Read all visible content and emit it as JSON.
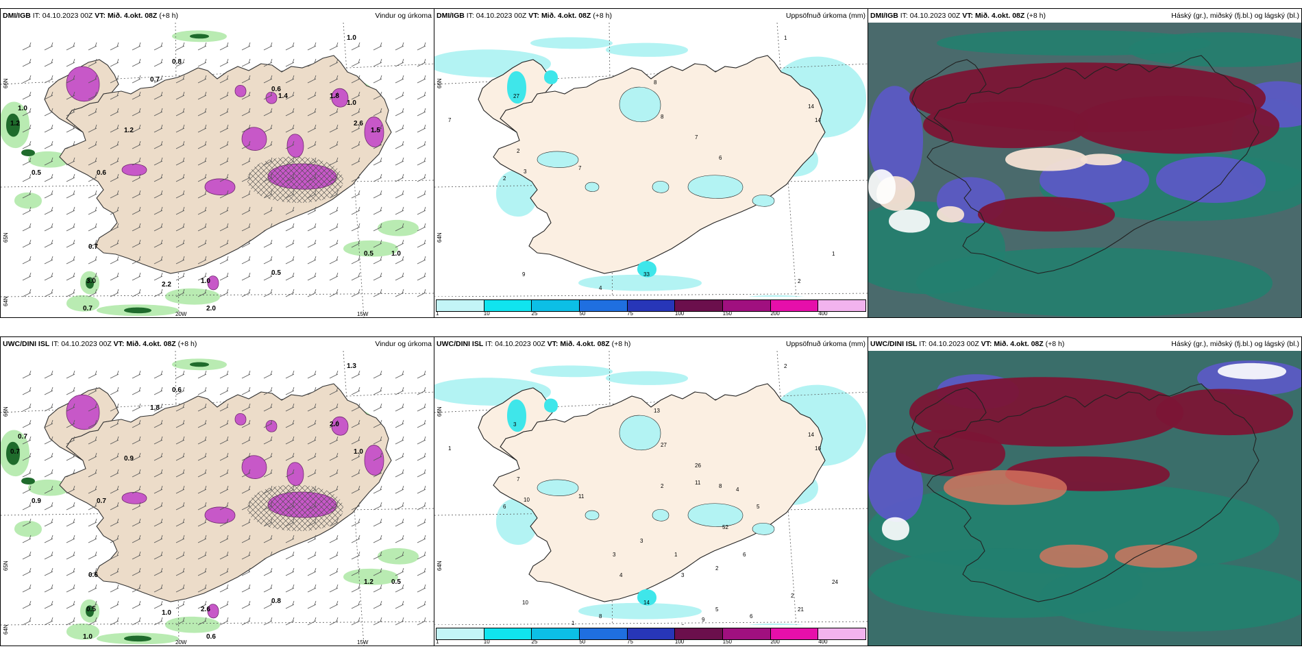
{
  "panels": [
    {
      "model": "DMI/IGB",
      "it_label": "IT:",
      "it_value": "04.10.2023 00Z",
      "vt_label": "VT:",
      "vt_value": "Mið. 4.okt. 08Z",
      "forecast_hour": "(+8 h)",
      "title": "Vindur og úrkoma",
      "type": "wind-precip",
      "grid_labels": [
        "66N",
        "65N",
        "64N",
        "20W",
        "15W"
      ],
      "values": [
        "1.0",
        "0.8",
        "0.7",
        "1.0",
        "1.2",
        "0.5",
        "0.6",
        "0.5",
        "1.0",
        "0.7",
        "3.0",
        "2.2",
        "2.0",
        "0.5",
        "0.7",
        "1.0",
        "1.8",
        "1.2",
        "2.6",
        "1.4",
        "1.0",
        "0.6",
        "1.5"
      ]
    },
    {
      "model": "DMI/IGB",
      "it_label": "IT:",
      "it_value": "04.10.2023 00Z",
      "vt_label": "VT:",
      "vt_value": "Mið. 4.okt. 08Z",
      "forecast_hour": "(+8 h)",
      "title": "Uppsöfnuð úrkoma (mm)",
      "type": "accum-precip",
      "grid_labels": [
        "66N",
        "64N"
      ],
      "values": [
        "1",
        "27",
        "7",
        "8",
        "8",
        "7",
        "14",
        "14",
        "6",
        "2",
        "3",
        "7",
        "2",
        "9",
        "4",
        "33",
        "2",
        "1"
      ],
      "scale": [
        "1",
        "10",
        "25",
        "50",
        "75",
        "100",
        "150",
        "200",
        "400"
      ]
    },
    {
      "model": "DMI/IGB",
      "it_label": "IT:",
      "it_value": "04.10.2023 00Z",
      "vt_label": "VT:",
      "vt_value": "Mið. 4.okt. 08Z",
      "forecast_hour": "(+8 h)",
      "title": "Háský (gr.), miðský (fj.bl.) og lágský (bl.)",
      "type": "clouds"
    },
    {
      "model": "UWC/DINI ISL",
      "it_label": "IT:",
      "it_value": "04.10.2023 00Z",
      "vt_label": "VT:",
      "vt_value": "Mið. 4.okt. 08Z",
      "forecast_hour": "(+8 h)",
      "title": "Vindur og úrkoma",
      "type": "wind-precip",
      "grid_labels": [
        "66N",
        "65N",
        "64N",
        "20W",
        "15W"
      ],
      "values": [
        "1.3",
        "0.6",
        "1.8",
        "0.7",
        "0.7",
        "0.9",
        "0.7",
        "0.8",
        "0.5",
        "0.6",
        "0.5",
        "1.0",
        "0.6",
        "1.2",
        "1.0",
        "2.6",
        "2.0",
        "0.9",
        "1.0"
      ]
    },
    {
      "model": "UWC/DINI ISL",
      "it_label": "IT:",
      "it_value": "04.10.2023 00Z",
      "vt_label": "VT:",
      "vt_value": "Mið. 4.okt. 08Z",
      "forecast_hour": "(+8 h)",
      "title": "Uppsöfnuð úrkoma (mm)",
      "type": "accum-precip",
      "grid_labels": [
        "66N",
        "64N"
      ],
      "values": [
        "2",
        "3",
        "1",
        "13",
        "27",
        "26",
        "14",
        "16",
        "8",
        "7",
        "10",
        "11",
        "6",
        "10",
        "8",
        "14",
        "21",
        "24",
        "11",
        "4",
        "5",
        "2",
        "3",
        "1",
        "2",
        "6",
        "3",
        "4",
        "3",
        "52",
        "1",
        "3",
        "5",
        "7",
        "8",
        "9",
        "5",
        "6",
        "2"
      ],
      "scale": [
        "1",
        "10",
        "25",
        "50",
        "75",
        "100",
        "150",
        "200",
        "400"
      ]
    },
    {
      "model": "UWC/DINI ISL",
      "it_label": "IT:",
      "it_value": "04.10.2023 00Z",
      "vt_label": "VT:",
      "vt_value": "Mið. 4.okt. 08Z",
      "forecast_hour": "(+8 h)",
      "title": "Háský (gr.), miðský (fj.bl.) og lágský (bl.)",
      "type": "clouds"
    }
  ],
  "colors": {
    "land": "#ecdcc9",
    "land_light": "#fbefe2",
    "precip_light": "#b3f3f3",
    "precip_mid": "#3fe6ea",
    "magenta": "#c758c8",
    "green_light": "#b9ebb2",
    "green_dark": "#1f6b2c",
    "cloud_dark_red": "#7b1535",
    "cloud_blue": "#5b5ac4",
    "cloud_teal": "#23806f",
    "scale": [
      "#c3f5f7",
      "#10e4ef",
      "#0cbfe6",
      "#1f6fe0",
      "#2736b8",
      "#6b0f4c",
      "#a0107f",
      "#e60faa",
      "#f2b3ee"
    ]
  }
}
